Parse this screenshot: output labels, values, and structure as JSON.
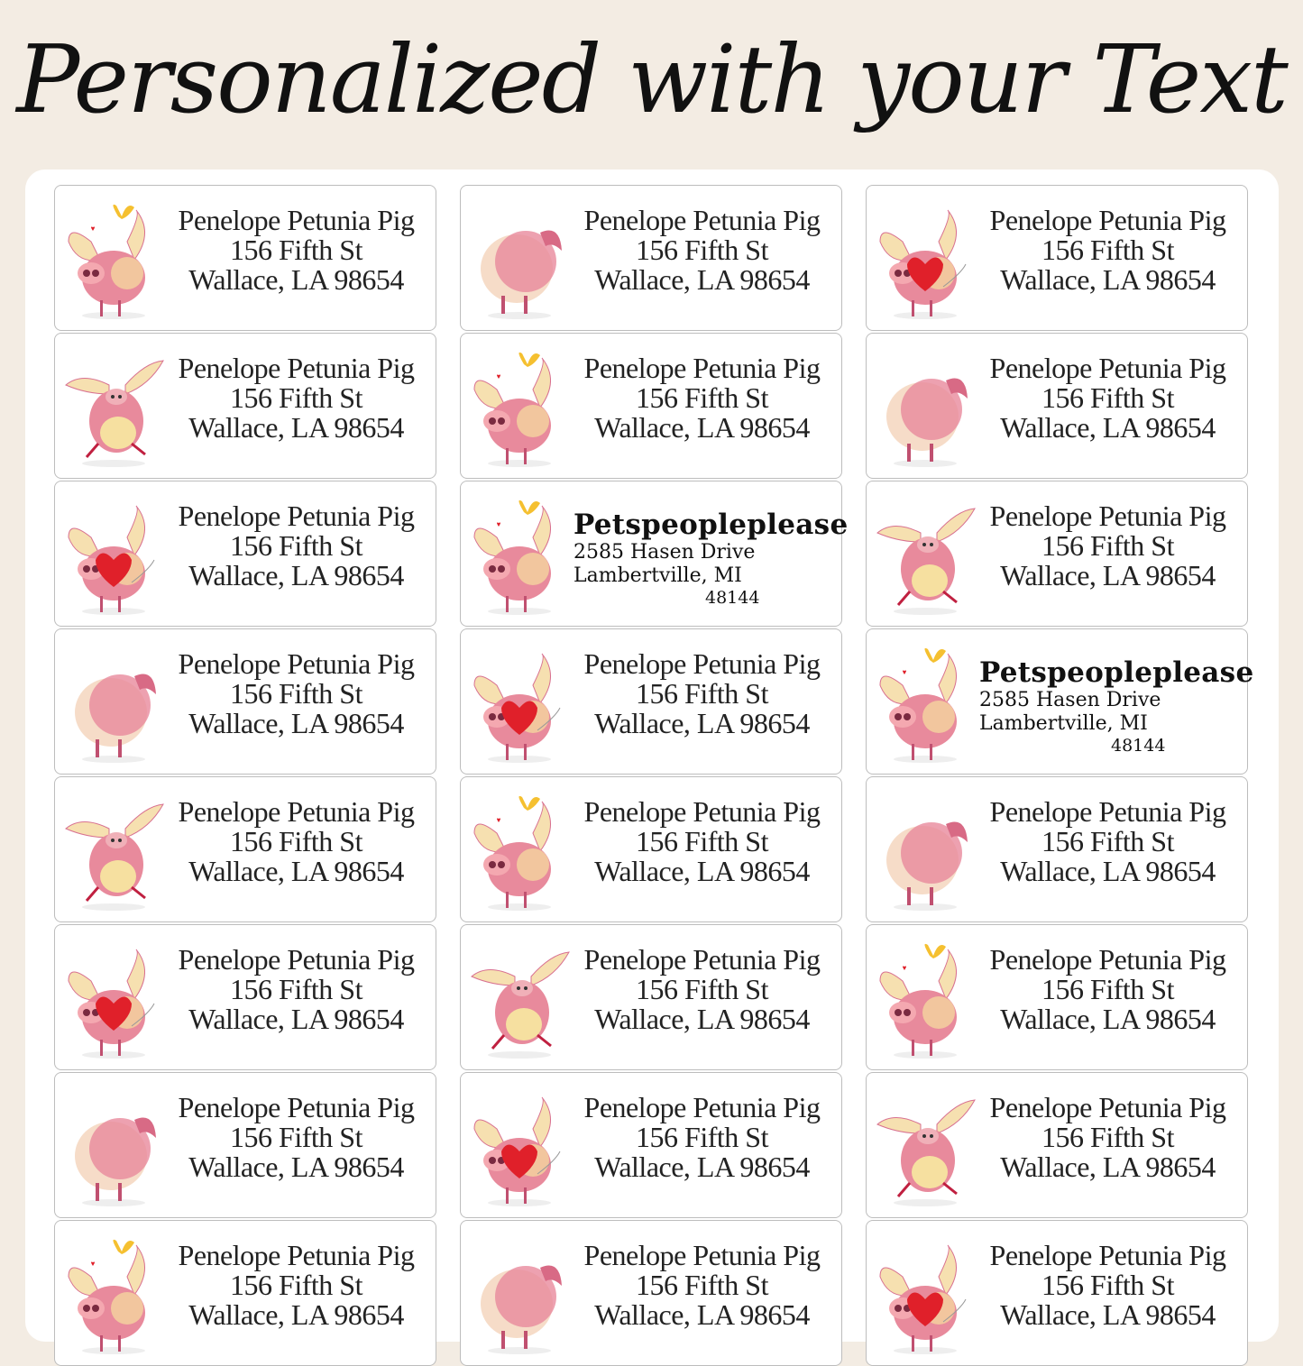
{
  "title": "Personalized with your Text",
  "default_label": {
    "name": "Penelope Petunia Pig",
    "street": "156 Fifth St",
    "city": "Wallace, LA 98654"
  },
  "special_label": {
    "name": "Petspeopleplease",
    "street": "2585 Hasen Drive",
    "city": "Lambertville, MI",
    "zip": "48144"
  },
  "labels": [
    {
      "pig": "butterfly-pig"
    },
    {
      "pig": "side-pig"
    },
    {
      "pig": "heart-pig"
    },
    {
      "pig": "flying-ears-pig"
    },
    {
      "pig": "butterfly-pig"
    },
    {
      "pig": "side-pig"
    },
    {
      "pig": "heart-pig"
    },
    {
      "pig": "butterfly-pig",
      "special": true
    },
    {
      "pig": "flying-ears-pig"
    },
    {
      "pig": "side-pig"
    },
    {
      "pig": "heart-pig"
    },
    {
      "pig": "butterfly-pig",
      "special": true
    },
    {
      "pig": "flying-ears-pig"
    },
    {
      "pig": "butterfly-pig"
    },
    {
      "pig": "side-pig"
    },
    {
      "pig": "heart-pig"
    },
    {
      "pig": "flying-ears-pig"
    },
    {
      "pig": "butterfly-pig"
    },
    {
      "pig": "side-pig"
    },
    {
      "pig": "heart-pig"
    },
    {
      "pig": "flying-ears-pig"
    },
    {
      "pig": "butterfly-pig"
    },
    {
      "pig": "side-pig"
    },
    {
      "pig": "heart-pig"
    }
  ],
  "colors": {
    "background": "#f3ece3",
    "pig": "#e88a9c",
    "heart": "#e0202a",
    "butterfly": "#f5c030"
  }
}
